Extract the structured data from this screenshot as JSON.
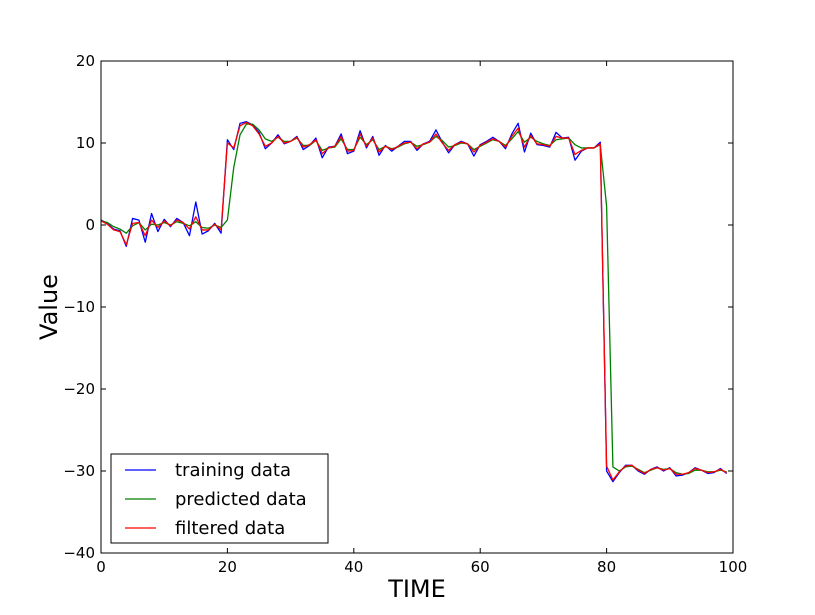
{
  "chart_data": {
    "type": "line",
    "xlabel": "TIME",
    "ylabel": "Value",
    "xlim": [
      0,
      100
    ],
    "ylim": [
      -40,
      20
    ],
    "xticks": [
      0,
      20,
      40,
      60,
      80,
      100
    ],
    "yticks": [
      20,
      10,
      0,
      -10,
      -20,
      -30,
      -40
    ],
    "ytick_labels": [
      "20",
      "10",
      "0",
      "−10",
      "−20",
      "−30",
      "−40"
    ],
    "grid": false,
    "legend_position": "lower-left",
    "x": [
      0,
      1,
      2,
      3,
      4,
      5,
      6,
      7,
      8,
      9,
      10,
      11,
      12,
      13,
      14,
      15,
      16,
      17,
      18,
      19,
      20,
      21,
      22,
      23,
      24,
      25,
      26,
      27,
      28,
      29,
      30,
      31,
      32,
      33,
      34,
      35,
      36,
      37,
      38,
      39,
      40,
      41,
      42,
      43,
      44,
      45,
      46,
      47,
      48,
      49,
      50,
      51,
      52,
      53,
      54,
      55,
      56,
      57,
      58,
      59,
      60,
      61,
      62,
      63,
      64,
      65,
      66,
      67,
      68,
      69,
      70,
      71,
      72,
      73,
      74,
      75,
      76,
      77,
      78,
      79,
      80,
      81,
      82,
      83,
      84,
      85,
      86,
      87,
      88,
      89,
      90,
      91,
      92,
      93,
      94,
      95,
      96,
      97,
      98,
      99
    ],
    "series": [
      {
        "name": "training data",
        "color": "#0000ff",
        "values": [
          0.6,
          0.2,
          -0.5,
          -0.7,
          -2.6,
          0.8,
          0.6,
          -2.1,
          1.4,
          -0.8,
          0.7,
          -0.2,
          0.8,
          0.3,
          -1.3,
          2.8,
          -1.1,
          -0.7,
          0.2,
          -1.0,
          10.4,
          9.2,
          12.4,
          12.6,
          12.2,
          11.3,
          9.3,
          10.0,
          11.0,
          9.9,
          10.2,
          10.8,
          9.2,
          9.7,
          10.6,
          8.2,
          9.5,
          9.6,
          11.1,
          8.7,
          9.0,
          11.5,
          9.4,
          10.8,
          8.5,
          9.7,
          9.0,
          9.6,
          10.2,
          10.2,
          9.1,
          9.9,
          10.2,
          11.6,
          10.1,
          8.8,
          9.8,
          10.2,
          9.9,
          8.4,
          9.8,
          10.2,
          10.7,
          10.2,
          9.3,
          11.1,
          12.4,
          8.9,
          11.2,
          9.8,
          9.7,
          9.5,
          11.3,
          10.6,
          10.7,
          7.9,
          9.0,
          9.4,
          9.4,
          10.1,
          -30.0,
          -31.3,
          -30.2,
          -29.3,
          -29.3,
          -30.0,
          -30.4,
          -29.8,
          -29.5,
          -30.0,
          -29.6,
          -30.6,
          -30.5,
          -30.2,
          -29.6,
          -29.9,
          -30.3,
          -30.2,
          -29.7,
          -30.3
        ]
      },
      {
        "name": "predicted data",
        "color": "#008000",
        "values": [
          0.5,
          0.3,
          -0.2,
          -0.5,
          -1.0,
          -0.1,
          0.3,
          -0.6,
          0.1,
          0.0,
          0.3,
          0.0,
          0.4,
          0.2,
          -0.1,
          0.4,
          -0.3,
          -0.4,
          0.0,
          -0.3,
          0.6,
          7.0,
          11.0,
          12.3,
          12.3,
          11.6,
          10.5,
          10.2,
          10.7,
          10.2,
          10.2,
          10.6,
          9.7,
          9.7,
          10.3,
          9.1,
          9.4,
          9.5,
          10.5,
          9.2,
          9.2,
          10.7,
          9.8,
          10.4,
          9.2,
          9.6,
          9.3,
          9.5,
          9.9,
          10.1,
          9.6,
          9.8,
          10.1,
          10.8,
          10.3,
          9.5,
          9.7,
          10.0,
          9.9,
          9.2,
          9.6,
          10.0,
          10.4,
          10.2,
          9.7,
          10.5,
          11.4,
          10.1,
          10.7,
          10.2,
          9.9,
          9.7,
          10.4,
          10.5,
          10.6,
          9.8,
          9.4,
          9.4,
          9.4,
          9.8,
          2.3,
          -29.5,
          -30.0,
          -29.5,
          -29.4,
          -29.8,
          -30.2,
          -29.9,
          -29.6,
          -29.8,
          -29.7,
          -30.2,
          -30.4,
          -30.3,
          -29.9,
          -29.9,
          -30.1,
          -30.1,
          -29.9,
          -30.1
        ]
      },
      {
        "name": "filtered data",
        "color": "#ff0000",
        "values": [
          0.5,
          0.1,
          -0.6,
          -0.8,
          -2.4,
          0.2,
          0.3,
          -1.3,
          0.6,
          -0.3,
          0.5,
          -0.1,
          0.6,
          0.3,
          -0.5,
          1.0,
          -0.6,
          -0.6,
          0.1,
          -0.6,
          10.0,
          9.4,
          12.1,
          12.5,
          12.1,
          11.1,
          9.6,
          10.0,
          10.8,
          10.0,
          10.2,
          10.7,
          9.5,
          9.8,
          10.4,
          8.7,
          9.4,
          9.6,
          10.8,
          9.0,
          9.1,
          11.1,
          9.6,
          10.6,
          8.9,
          9.6,
          9.2,
          9.6,
          10.0,
          10.1,
          9.3,
          9.9,
          10.1,
          11.1,
          10.0,
          9.1,
          9.8,
          10.1,
          9.9,
          8.9,
          9.7,
          10.1,
          10.5,
          10.2,
          9.5,
          10.8,
          11.8,
          9.5,
          10.9,
          9.9,
          9.8,
          9.6,
          10.8,
          10.6,
          10.6,
          8.6,
          9.1,
          9.4,
          9.4,
          9.9,
          -29.4,
          -31.1,
          -30.1,
          -29.4,
          -29.3,
          -29.9,
          -30.3,
          -29.8,
          -29.6,
          -29.9,
          -29.7,
          -30.4,
          -30.4,
          -30.2,
          -29.7,
          -29.9,
          -30.2,
          -30.1,
          -29.8,
          -30.2
        ]
      }
    ]
  }
}
